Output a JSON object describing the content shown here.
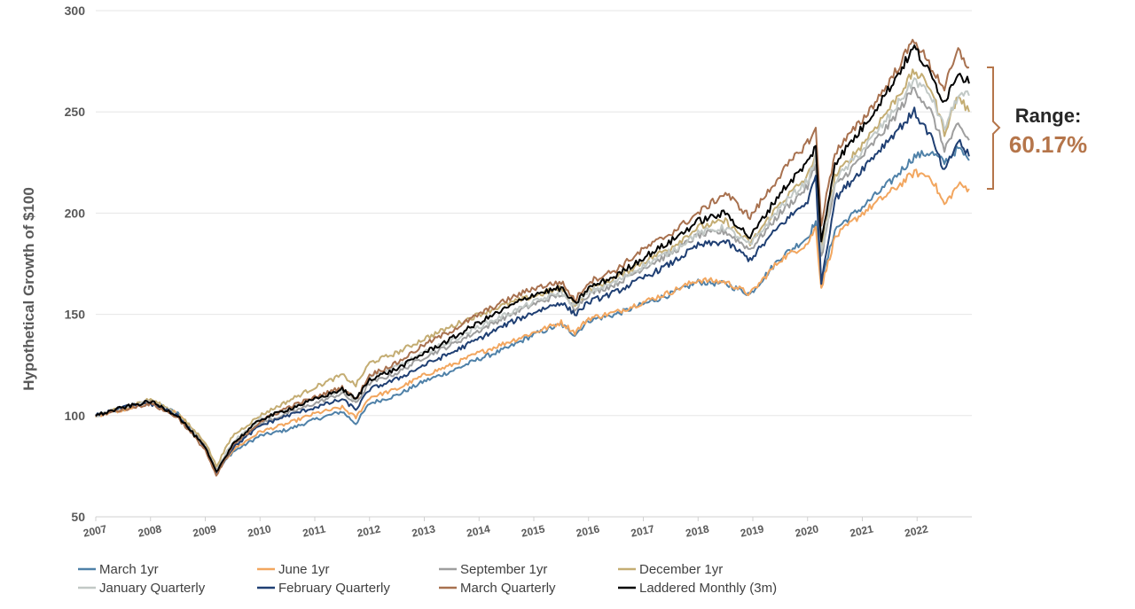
{
  "chart_data": {
    "type": "line",
    "title": "",
    "xlabel": "",
    "ylabel": "Hypothetical Growth of $100",
    "ylim": [
      50,
      300
    ],
    "yticks": [
      50,
      100,
      150,
      200,
      250,
      300
    ],
    "xlim": [
      2007,
      2023
    ],
    "xticks": [
      "2007",
      "2008",
      "2009",
      "2010",
      "2011",
      "2012",
      "2013",
      "2014",
      "2015",
      "2016",
      "2017",
      "2018",
      "2019",
      "2020",
      "2021",
      "2022"
    ],
    "x": [
      2007,
      2007.5,
      2008,
      2008.5,
      2009,
      2009.2,
      2009.5,
      2010,
      2010.5,
      2011,
      2011.5,
      2011.75,
      2012,
      2012.5,
      2013,
      2013.5,
      2014,
      2014.5,
      2015,
      2015.5,
      2015.75,
      2016,
      2016.5,
      2017,
      2017.5,
      2018,
      2018.5,
      2018.95,
      2019.5,
      2020,
      2020.15,
      2020.25,
      2020.5,
      2021,
      2021.5,
      2021.95,
      2022.25,
      2022.5,
      2022.75,
      2022.95
    ],
    "series": [
      {
        "name": "March 1yr",
        "color": "#4f81a8",
        "values": [
          100,
          103,
          107,
          101,
          84,
          72,
          82,
          90,
          93,
          98,
          102,
          96,
          106,
          110,
          117,
          122,
          128,
          133,
          140,
          145,
          140,
          147,
          150,
          155,
          160,
          166,
          165,
          160,
          178,
          188,
          196,
          165,
          192,
          203,
          215,
          228,
          230,
          225,
          232,
          226
        ]
      },
      {
        "name": "June 1yr",
        "color": "#f2a65f",
        "values": [
          100,
          103,
          107,
          101,
          85,
          72,
          83,
          92,
          96,
          101,
          104,
          99,
          109,
          113,
          120,
          125,
          131,
          136,
          141,
          146,
          141,
          148,
          151,
          156,
          161,
          167,
          166,
          160,
          177,
          185,
          193,
          163,
          188,
          200,
          210,
          220,
          218,
          204,
          214,
          212
        ]
      },
      {
        "name": "September 1yr",
        "color": "#9e9e9e",
        "values": [
          100,
          104,
          107,
          100,
          85,
          73,
          85,
          96,
          101,
          106,
          111,
          106,
          116,
          121,
          129,
          135,
          142,
          149,
          155,
          160,
          153,
          160,
          165,
          173,
          180,
          189,
          191,
          182,
          200,
          213,
          224,
          178,
          213,
          228,
          244,
          262,
          250,
          232,
          243,
          236
        ]
      },
      {
        "name": "December 1yr",
        "color": "#c4ad73",
        "values": [
          100,
          104,
          108,
          101,
          87,
          75,
          90,
          100,
          107,
          114,
          120,
          115,
          126,
          131,
          138,
          144,
          150,
          155,
          159,
          163,
          155,
          162,
          168,
          176,
          183,
          193,
          196,
          185,
          205,
          218,
          230,
          182,
          218,
          234,
          252,
          270,
          262,
          240,
          258,
          250
        ]
      },
      {
        "name": "January Quarterly",
        "color": "#c2c9c6",
        "values": [
          100,
          104,
          107,
          100,
          85,
          73,
          87,
          98,
          103,
          108,
          113,
          108,
          119,
          124,
          131,
          137,
          144,
          150,
          156,
          161,
          154,
          161,
          166,
          174,
          181,
          190,
          193,
          184,
          203,
          216,
          228,
          180,
          216,
          231,
          248,
          266,
          258,
          242,
          258,
          258
        ]
      },
      {
        "name": "February Quarterly",
        "color": "#1f3f73",
        "values": [
          100,
          104,
          106,
          100,
          84,
          72,
          84,
          95,
          100,
          104,
          108,
          103,
          113,
          118,
          125,
          131,
          138,
          145,
          151,
          156,
          150,
          156,
          161,
          168,
          175,
          184,
          186,
          177,
          194,
          206,
          218,
          166,
          207,
          222,
          237,
          250,
          238,
          220,
          236,
          228
        ]
      },
      {
        "name": "March Quarterly",
        "color": "#a8714f",
        "values": [
          100,
          103,
          106,
          99,
          83,
          70,
          85,
          97,
          104,
          109,
          114,
          108,
          120,
          126,
          135,
          142,
          150,
          157,
          163,
          166,
          157,
          166,
          172,
          182,
          190,
          200,
          210,
          198,
          219,
          235,
          241,
          195,
          230,
          246,
          265,
          286,
          272,
          262,
          280,
          272
        ]
      },
      {
        "name": "Laddered Monthly (3m)",
        "color": "#000000",
        "values": [
          100,
          104,
          107,
          100,
          84,
          72,
          86,
          98,
          103,
          108,
          113,
          108,
          118,
          123,
          131,
          138,
          146,
          153,
          160,
          163,
          155,
          163,
          169,
          178,
          186,
          196,
          200,
          188,
          210,
          225,
          233,
          185,
          225,
          242,
          262,
          282,
          268,
          255,
          270,
          264
        ]
      }
    ],
    "annotation": {
      "label": "Range:",
      "value": "60.17%",
      "color": "#b5754a"
    }
  }
}
